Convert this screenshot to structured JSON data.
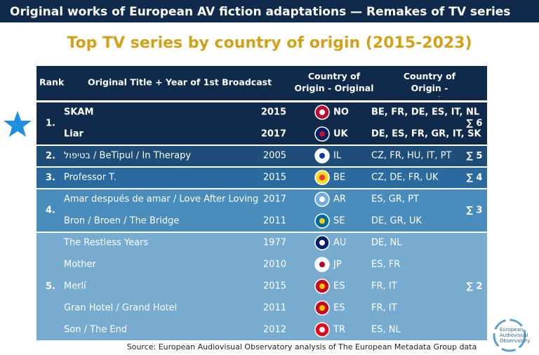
{
  "header": {
    "title": "Original works of European AV fiction adaptations — Remakes of TV series"
  },
  "subtitle": "Top TV series by country of origin (2015-2023)",
  "table": {
    "columns": [
      "Rank",
      "Original Title + Year of 1st Broadcast",
      "Country of Origin - Original",
      "Country of Origin - Remake"
    ],
    "groups": [
      {
        "rank": "1.",
        "count": "∑ 6",
        "entries": [
          {
            "title": "SKAM",
            "year": "2015",
            "country": "NO",
            "remakes": "BE, FR, DE, ES, IT, NL"
          },
          {
            "title": "Liar",
            "year": "2017",
            "country": "UK",
            "remakes": "DE, ES, FR, GR, IT, SK"
          }
        ]
      },
      {
        "rank": "2.",
        "count": "∑ 5",
        "entries": [
          {
            "title": "בטיפול / BeTipul / In Therapy",
            "year": "2005",
            "country": "IL",
            "remakes": "CZ, FR, HU, IT, PT"
          }
        ]
      },
      {
        "rank": "3.",
        "count": "∑ 4",
        "entries": [
          {
            "title": "Professor T.",
            "year": "2015",
            "country": "BE",
            "remakes": "CZ, DE, FR, UK"
          }
        ]
      },
      {
        "rank": "4.",
        "count": "∑ 3",
        "entries": [
          {
            "title": "Amar después de amar / Love After Loving",
            "year": "2017",
            "country": "AR",
            "remakes": "ES, GR, PT"
          },
          {
            "title": "Bron / Broen / The Bridge",
            "year": "2011",
            "country": "SE",
            "remakes": "DE, GR, UK"
          }
        ]
      },
      {
        "rank": "5.",
        "count": "∑ 2",
        "entries": [
          {
            "title": "The Restless Years",
            "year": "1977",
            "country": "AU",
            "remakes": "DE, NL"
          },
          {
            "title": "Mother",
            "year": "2010",
            "country": "JP",
            "remakes": "ES, FR"
          },
          {
            "title": "Merlí",
            "year": "2015",
            "country": "ES",
            "remakes": "FR, IT"
          },
          {
            "title": "Gran Hotel / Grand Hotel",
            "year": "2011",
            "country": "ES",
            "remakes": "FR, IT"
          },
          {
            "title": "Son / The End",
            "year": "2012",
            "country": "TR",
            "remakes": "ES, NL"
          }
        ]
      }
    ]
  },
  "source": "Source: European Audiovisual Observatory analysis of The European Metadata Group data",
  "logo": [
    "European",
    "Audiovisual",
    "Observatory"
  ]
}
